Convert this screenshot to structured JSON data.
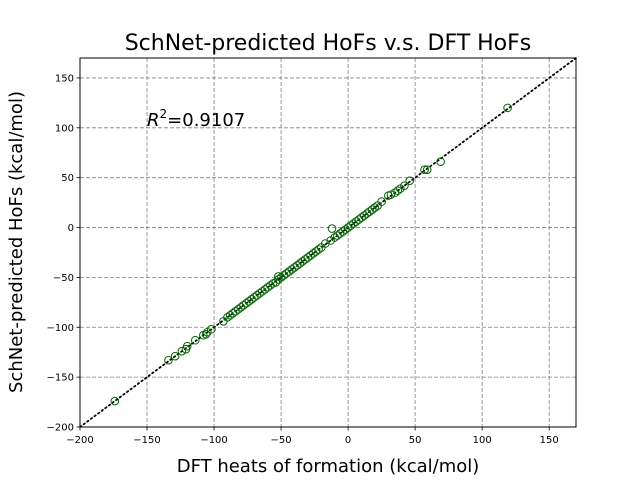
{
  "chart_data": {
    "type": "scatter",
    "title": "SchNet-predicted HoFs v.s. DFT HoFs",
    "xlabel": "DFT heats of formation (kcal/mol)",
    "ylabel": "SchNet-predicted HoFs (kcal/mol)",
    "xlim": [
      -200,
      170
    ],
    "ylim": [
      -200,
      170
    ],
    "xticks": [
      -200,
      -150,
      -100,
      -50,
      0,
      50,
      100,
      150
    ],
    "yticks": [
      -200,
      -150,
      -100,
      -50,
      0,
      50,
      100,
      150
    ],
    "xtick_labels": [
      "−200",
      "−150",
      "−100",
      "−50",
      "0",
      "50",
      "100",
      "150"
    ],
    "ytick_labels": [
      "−200",
      "−150",
      "−100",
      "−50",
      "0",
      "50",
      "100",
      "150"
    ],
    "grid": true,
    "annotation": {
      "base": "R",
      "sup": "2",
      "value": "=0.9107"
    },
    "reference_line": {
      "x": [
        -200,
        170
      ],
      "y": [
        -200,
        170
      ],
      "style": "dotted",
      "color": "#000000"
    },
    "marker_color": "#006400",
    "series": [
      {
        "points": [
          [
            -174,
            -174
          ],
          [
            -134,
            -133
          ],
          [
            -129,
            -129
          ],
          [
            -124,
            -124
          ],
          [
            -121,
            -122
          ],
          [
            -120,
            -119
          ],
          [
            -114,
            -113
          ],
          [
            -108,
            -108
          ],
          [
            -106,
            -107
          ],
          [
            -105,
            -105
          ],
          [
            -102,
            -102
          ],
          [
            -93,
            -94
          ],
          [
            -90,
            -90
          ],
          [
            -88,
            -88
          ],
          [
            -86,
            -86
          ],
          [
            -84,
            -84
          ],
          [
            -82,
            -82
          ],
          [
            -80,
            -80
          ],
          [
            -78,
            -78
          ],
          [
            -76,
            -76
          ],
          [
            -74,
            -74
          ],
          [
            -72,
            -72
          ],
          [
            -70,
            -70
          ],
          [
            -68,
            -68
          ],
          [
            -66,
            -66
          ],
          [
            -64,
            -64
          ],
          [
            -62,
            -62
          ],
          [
            -60,
            -60
          ],
          [
            -58,
            -58
          ],
          [
            -56,
            -56
          ],
          [
            -54,
            -55
          ],
          [
            -52,
            -52
          ],
          [
            -52,
            -49
          ],
          [
            -50,
            -50
          ],
          [
            -48,
            -48
          ],
          [
            -46,
            -46
          ],
          [
            -44,
            -44
          ],
          [
            -42,
            -42
          ],
          [
            -40,
            -40
          ],
          [
            -38,
            -38
          ],
          [
            -36,
            -36
          ],
          [
            -34,
            -34
          ],
          [
            -32,
            -32
          ],
          [
            -30,
            -30
          ],
          [
            -28,
            -28
          ],
          [
            -26,
            -26
          ],
          [
            -24,
            -24
          ],
          [
            -22,
            -22
          ],
          [
            -20,
            -20
          ],
          [
            -17,
            -16
          ],
          [
            -13,
            -13
          ],
          [
            -12,
            -1
          ],
          [
            -10,
            -10
          ],
          [
            -8,
            -8
          ],
          [
            -6,
            -6
          ],
          [
            -4,
            -4
          ],
          [
            -2,
            -2
          ],
          [
            0,
            0
          ],
          [
            2,
            2
          ],
          [
            4,
            4
          ],
          [
            6,
            6
          ],
          [
            8,
            8
          ],
          [
            10,
            10
          ],
          [
            12,
            12
          ],
          [
            14,
            14
          ],
          [
            16,
            16
          ],
          [
            18,
            18
          ],
          [
            20,
            20
          ],
          [
            22,
            22
          ],
          [
            25,
            26
          ],
          [
            30,
            32
          ],
          [
            32,
            33
          ],
          [
            35,
            35
          ],
          [
            37,
            37
          ],
          [
            39,
            39
          ],
          [
            42,
            42
          ],
          [
            46,
            47
          ],
          [
            57,
            58
          ],
          [
            59,
            58
          ],
          [
            69,
            66
          ],
          [
            119,
            120
          ]
        ]
      }
    ]
  }
}
